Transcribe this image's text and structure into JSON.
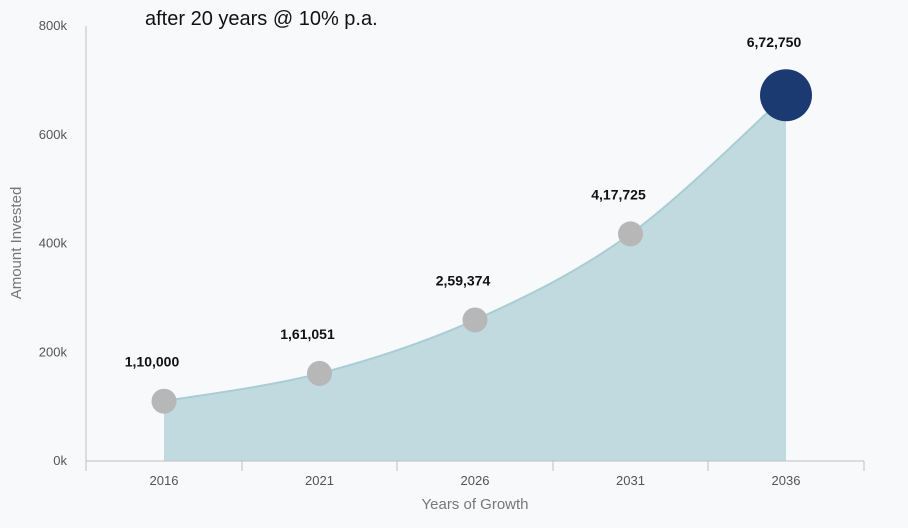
{
  "chart_data": {
    "type": "area",
    "subtitle": "after 20 years @ 10% p.a.",
    "xlabel": "Years of Growth",
    "ylabel": "Amount Invested",
    "categories": [
      "2016",
      "2021",
      "2026",
      "2031",
      "2036"
    ],
    "series": [
      {
        "values": [
          110000,
          161051,
          259374,
          417725,
          672750
        ],
        "data_labels": [
          "1,10,000",
          "1,61,051",
          "2,59,374",
          "4,17,725",
          "6,72,750"
        ]
      }
    ],
    "ylim": [
      0,
      800000
    ],
    "yticks": [
      0,
      200000,
      400000,
      600000,
      800000
    ],
    "ytick_labels": [
      "0k",
      "200k",
      "400k",
      "600k",
      "800k"
    ],
    "grid": false,
    "legend": "none",
    "colors": {
      "area_fill": "#c1dadf",
      "area_line": "#a9cdd4",
      "marker": "#b7b7b7",
      "highlight_marker": "#1b3a72",
      "axis": "#bfbfbf"
    }
  }
}
